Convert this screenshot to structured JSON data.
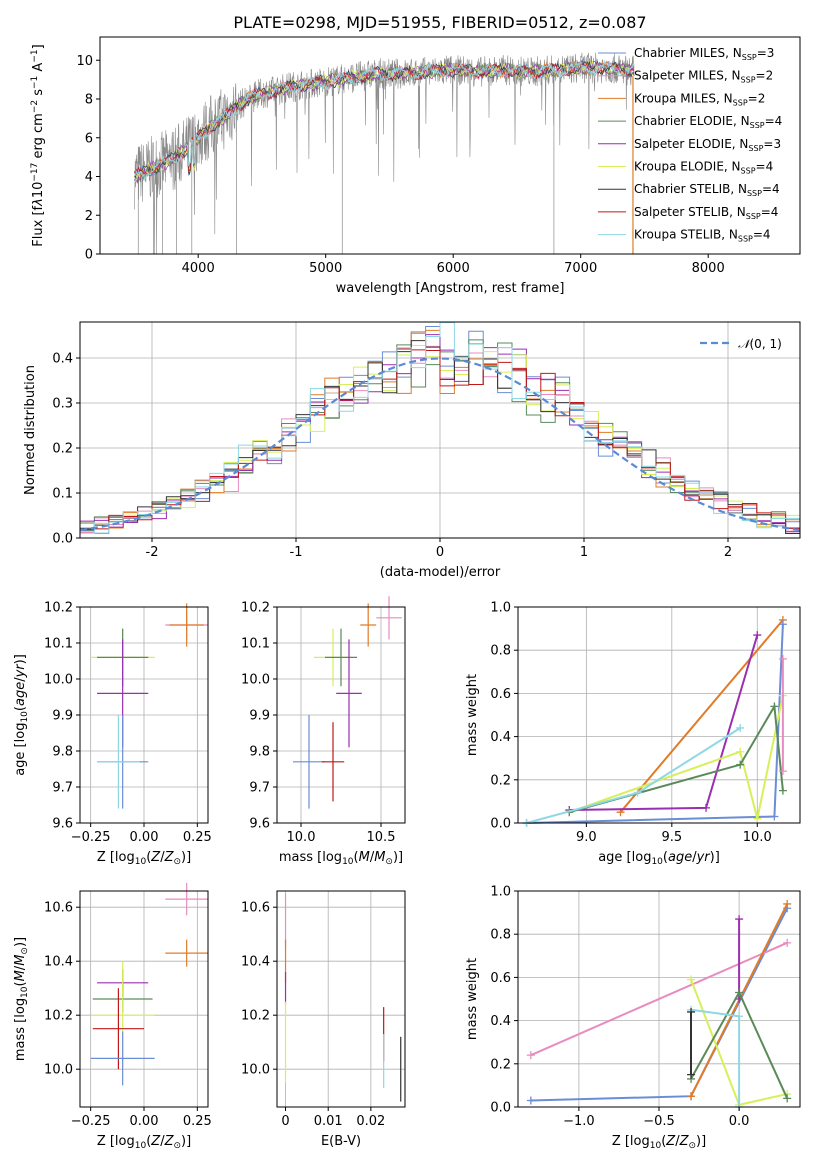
{
  "figure": {
    "title": "PLATE=0298, MJD=51955, FIBERID=0512, z=0.087"
  },
  "colors": {
    "Chabrier MILES": "#6a8dd6",
    "Salpeter MILES": "#e88cc0",
    "Kroupa MILES": "#e07b28",
    "Chabrier ELODIE": "#5a8a5a",
    "Salpeter ELODIE": "#9a2fb0",
    "Kroupa ELODIE": "#d6f05a",
    "Chabrier STELIB": "#333333",
    "Salpeter STELIB": "#c01818",
    "Kroupa STELIB": "#8ed8e4",
    "gaussian": "#5a8ad6"
  },
  "chart_data": [
    {
      "id": "spectrum",
      "type": "line",
      "title": "PLATE=0298, MJD=51955, FIBERID=0512, z=0.087",
      "xlabel": "wavelength [Angstrom, rest frame]",
      "ylabel": "Flux [fλ 10^-17 erg cm^-2 s^-1 A^-1]",
      "xlim": [
        3230,
        8720
      ],
      "ylim": [
        0,
        11.2
      ],
      "xticks": [
        4000,
        5000,
        6000,
        7000,
        8000
      ],
      "yticks": [
        0,
        2,
        4,
        6,
        8,
        10
      ],
      "data_series": {
        "name": "",
        "x": [
          3500,
          3600,
          3700,
          3800,
          3900,
          4000,
          4100,
          4200,
          4300,
          4400,
          4500,
          4600,
          4700,
          4800,
          4900,
          5000,
          5200,
          5400,
          5600,
          5800,
          6000,
          6200,
          6400,
          6600,
          6800,
          7000,
          7200,
          7400
        ],
        "y": [
          4.0,
          4.3,
          4.6,
          4.9,
          5.4,
          6.0,
          6.6,
          7.0,
          7.6,
          8.0,
          8.3,
          8.4,
          8.6,
          8.7,
          8.8,
          8.9,
          9.1,
          9.3,
          9.3,
          9.4,
          9.5,
          9.4,
          9.5,
          9.4,
          9.5,
          9.6,
          9.6,
          9.5
        ]
      },
      "legend": {
        "placement": "top-right",
        "entries": [
          {
            "name": "Chabrier MILES",
            "nssp": "3"
          },
          {
            "name": "Salpeter MILES",
            "nssp": "2"
          },
          {
            "name": "Kroupa MILES",
            "nssp": "2"
          },
          {
            "name": "Chabrier ELODIE",
            "nssp": "4"
          },
          {
            "name": "Salpeter ELODIE",
            "nssp": "3"
          },
          {
            "name": "Kroupa ELODIE",
            "nssp": "4"
          },
          {
            "name": "Chabrier STELIB",
            "nssp": "4"
          },
          {
            "name": "Salpeter STELIB",
            "nssp": "4"
          },
          {
            "name": "Kroupa STELIB",
            "nssp": "4"
          }
        ]
      }
    },
    {
      "id": "residuals",
      "type": "histogram",
      "xlabel": "(data-model)/error",
      "ylabel": "Normed distribution",
      "xlim": [
        -2.5,
        2.5
      ],
      "ylim": [
        0,
        0.48
      ],
      "xticks": [
        -2,
        -1,
        0,
        1,
        2
      ],
      "yticks": [
        0.0,
        0.1,
        0.2,
        0.3,
        0.4
      ],
      "bin_width": 0.1,
      "legend": {
        "placement": "top-right",
        "label": "N(0,1)"
      },
      "grid": true
    },
    {
      "id": "age-vs-Z",
      "type": "errorbar",
      "xlabel": "Z [log10(Z/Z⊙)]",
      "ylabel": "age  [log10(age/yr)]",
      "xlim": [
        -0.3,
        0.3
      ],
      "ylim": [
        9.6,
        10.2
      ],
      "xticks": [
        -0.25,
        0.0,
        0.25
      ],
      "yticks": [
        9.6,
        9.7,
        9.8,
        9.9,
        10.0,
        10.1,
        10.2
      ],
      "points": [
        {
          "model": "Salpeter MILES",
          "x": 0.2,
          "y": 10.15,
          "xerr": 0.1,
          "yerr": 0.04
        },
        {
          "model": "Kroupa MILES",
          "x": 0.2,
          "y": 10.15,
          "xerr": 0.08,
          "yerr": 0.06
        },
        {
          "model": "Kroupa ELODIE",
          "x": -0.1,
          "y": 10.06,
          "xerr": 0.15,
          "yerr": 0.08
        },
        {
          "model": "Chabrier ELODIE",
          "x": -0.1,
          "y": 10.06,
          "xerr": 0.12,
          "yerr": 0.08
        },
        {
          "model": "Salpeter ELODIE",
          "x": -0.1,
          "y": 9.96,
          "xerr": 0.12,
          "yerr": 0.15
        },
        {
          "model": "Chabrier MILES",
          "x": -0.1,
          "y": 9.77,
          "xerr": 0.12,
          "yerr": 0.13
        },
        {
          "model": "Kroupa STELIB",
          "x": -0.12,
          "y": 9.77,
          "xerr": 0.1,
          "yerr": 0.13
        }
      ]
    },
    {
      "id": "age-vs-mass",
      "type": "errorbar",
      "xlabel": "mass [log10(M/M⊙)]",
      "ylabel": "",
      "xlim": [
        9.85,
        10.65
      ],
      "ylim": [
        9.6,
        10.2
      ],
      "xticks": [
        10.0,
        10.5
      ],
      "yticks": [
        9.6,
        9.7,
        9.8,
        9.9,
        10.0,
        10.1,
        10.2
      ],
      "points": [
        {
          "model": "Salpeter MILES",
          "x": 10.55,
          "y": 10.17,
          "xerr": 0.08,
          "yerr": 0.06
        },
        {
          "model": "Kroupa MILES",
          "x": 10.42,
          "y": 10.15,
          "xerr": 0.05,
          "yerr": 0.06
        },
        {
          "model": "Kroupa ELODIE",
          "x": 10.2,
          "y": 10.06,
          "xerr": 0.12,
          "yerr": 0.08
        },
        {
          "model": "Chabrier ELODIE",
          "x": 10.25,
          "y": 10.06,
          "xerr": 0.1,
          "yerr": 0.08
        },
        {
          "model": "Salpeter ELODIE",
          "x": 10.3,
          "y": 9.96,
          "xerr": 0.08,
          "yerr": 0.15
        },
        {
          "model": "Chabrier MILES",
          "x": 10.05,
          "y": 9.77,
          "xerr": 0.1,
          "yerr": 0.13
        },
        {
          "model": "Salpeter STELIB",
          "x": 10.2,
          "y": 9.77,
          "xerr": 0.07,
          "yerr": 0.11
        }
      ]
    },
    {
      "id": "weight-vs-age",
      "type": "line",
      "xlabel": "age  [log10(age/yr)]",
      "ylabel": "mass weight",
      "xlim": [
        8.6,
        10.25
      ],
      "ylim": [
        0,
        1
      ],
      "xticks": [
        9.0,
        9.5,
        10.0
      ],
      "yticks": [
        0.0,
        0.2,
        0.4,
        0.6,
        0.8,
        1.0
      ],
      "series": [
        {
          "model": "Kroupa MILES",
          "x": [
            9.2,
            10.15
          ],
          "y": [
            0.05,
            0.94
          ]
        },
        {
          "model": "Chabrier MILES",
          "x": [
            8.65,
            10.1,
            10.15
          ],
          "y": [
            0.0,
            0.03,
            0.92
          ]
        },
        {
          "model": "Salpeter ELODIE",
          "x": [
            8.9,
            9.7,
            10.0
          ],
          "y": [
            0.06,
            0.07,
            0.87
          ]
        },
        {
          "model": "Kroupa ELODIE",
          "x": [
            8.9,
            9.9,
            10.0,
            10.15
          ],
          "y": [
            0.05,
            0.33,
            0.02,
            0.59
          ]
        },
        {
          "model": "Chabrier ELODIE",
          "x": [
            8.9,
            9.9,
            10.1,
            10.15
          ],
          "y": [
            0.05,
            0.27,
            0.54,
            0.15
          ]
        },
        {
          "model": "Kroupa STELIB",
          "x": [
            8.65,
            9.3,
            9.9
          ],
          "y": [
            0.0,
            0.14,
            0.44
          ]
        },
        {
          "model": "Salpeter MILES",
          "x": [
            10.15,
            10.15
          ],
          "y": [
            0.76,
            0.24
          ]
        }
      ]
    },
    {
      "id": "mass-vs-Z",
      "type": "errorbar",
      "xlabel": "Z [log10(Z/Z⊙)]",
      "ylabel": "mass [log10(M/M⊙)]",
      "xlim": [
        -0.3,
        0.3
      ],
      "ylim": [
        9.86,
        10.66
      ],
      "xticks": [
        -0.25,
        0.0,
        0.25
      ],
      "yticks": [
        10.0,
        10.2,
        10.4,
        10.6
      ],
      "points": [
        {
          "model": "Salpeter MILES",
          "x": 0.2,
          "y": 10.63,
          "xerr": 0.1,
          "yerr": 0.06
        },
        {
          "model": "Kroupa MILES",
          "x": 0.2,
          "y": 10.43,
          "xerr": 0.1,
          "yerr": 0.05
        },
        {
          "model": "Salpeter ELODIE",
          "x": -0.1,
          "y": 10.32,
          "xerr": 0.12,
          "yerr": 0.05
        },
        {
          "model": "Chabrier ELODIE",
          "x": -0.1,
          "y": 10.26,
          "xerr": 0.14,
          "yerr": 0.05
        },
        {
          "model": "Kroupa ELODIE",
          "x": -0.1,
          "y": 10.2,
          "xerr": 0.15,
          "yerr": 0.2
        },
        {
          "model": "Salpeter STELIB",
          "x": -0.12,
          "y": 10.15,
          "xerr": 0.12,
          "yerr": 0.15
        },
        {
          "model": "Chabrier MILES",
          "x": -0.1,
          "y": 10.04,
          "xerr": 0.15,
          "yerr": 0.1
        }
      ]
    },
    {
      "id": "mass-vs-ebv",
      "type": "errorbar",
      "xlabel": "E(B-V)",
      "ylabel": "",
      "xlim": [
        -0.002,
        0.028
      ],
      "ylim": [
        9.86,
        10.66
      ],
      "xticks": [
        0.0,
        0.01,
        0.02
      ],
      "yticks": [
        10.0,
        10.2,
        10.4,
        10.6
      ],
      "points": [
        {
          "model": "Salpeter MILES",
          "x": 0.0,
          "y": 10.55,
          "xerr": 0.0,
          "yerr": 0.1
        },
        {
          "model": "Kroupa MILES",
          "x": 0.0,
          "y": 10.4,
          "xerr": 0.0,
          "yerr": 0.08
        },
        {
          "model": "Salpeter ELODIE",
          "x": 0.0,
          "y": 10.3,
          "xerr": 0.0,
          "yerr": 0.06
        },
        {
          "model": "Kroupa ELODIE",
          "x": 0.0,
          "y": 10.1,
          "xerr": 0.0,
          "yerr": 0.15
        },
        {
          "model": "Salpeter STELIB",
          "x": 0.023,
          "y": 10.13,
          "xerr": 0.0,
          "yerr": 0.1
        },
        {
          "model": "Kroupa STELIB",
          "x": 0.023,
          "y": 10.03,
          "xerr": 0.0,
          "yerr": 0.1
        },
        {
          "model": "Chabrier STELIB",
          "x": 0.027,
          "y": 10.0,
          "xerr": 0.0,
          "yerr": 0.12
        }
      ]
    },
    {
      "id": "weight-vs-Z",
      "type": "line",
      "xlabel": "Z [log10(Z/Z⊙)]",
      "ylabel": "mass weight",
      "xlim": [
        -1.38,
        0.38
      ],
      "ylim": [
        0,
        1
      ],
      "xticks": [
        -1.0,
        -0.5,
        0.0
      ],
      "yticks": [
        0.0,
        0.2,
        0.4,
        0.6,
        0.8,
        1.0
      ],
      "series": [
        {
          "model": "Chabrier MILES",
          "x": [
            -1.3,
            -0.3,
            0.3
          ],
          "y": [
            0.03,
            0.05,
            0.92
          ]
        },
        {
          "model": "Salpeter MILES",
          "x": [
            -1.3,
            0.3
          ],
          "y": [
            0.24,
            0.76
          ]
        },
        {
          "model": "Kroupa MILES",
          "x": [
            -0.3,
            0.3
          ],
          "y": [
            0.05,
            0.94
          ]
        },
        {
          "model": "Salpeter ELODIE",
          "x": [
            0.0,
            0.0
          ],
          "y": [
            0.5,
            0.87
          ]
        },
        {
          "model": "Kroupa ELODIE",
          "x": [
            -0.3,
            0.0,
            0.3
          ],
          "y": [
            0.59,
            0.01,
            0.06
          ]
        },
        {
          "model": "Chabrier ELODIE",
          "x": [
            -0.3,
            0.0,
            0.3
          ],
          "y": [
            0.13,
            0.53,
            0.04
          ]
        },
        {
          "model": "Kroupa STELIB",
          "x": [
            -0.3,
            0.0,
            0.0
          ],
          "y": [
            0.45,
            0.42,
            0.0
          ]
        },
        {
          "model": "Chabrier STELIB",
          "x": [
            -0.3,
            -0.3
          ],
          "y": [
            0.15,
            0.44
          ]
        }
      ]
    }
  ]
}
